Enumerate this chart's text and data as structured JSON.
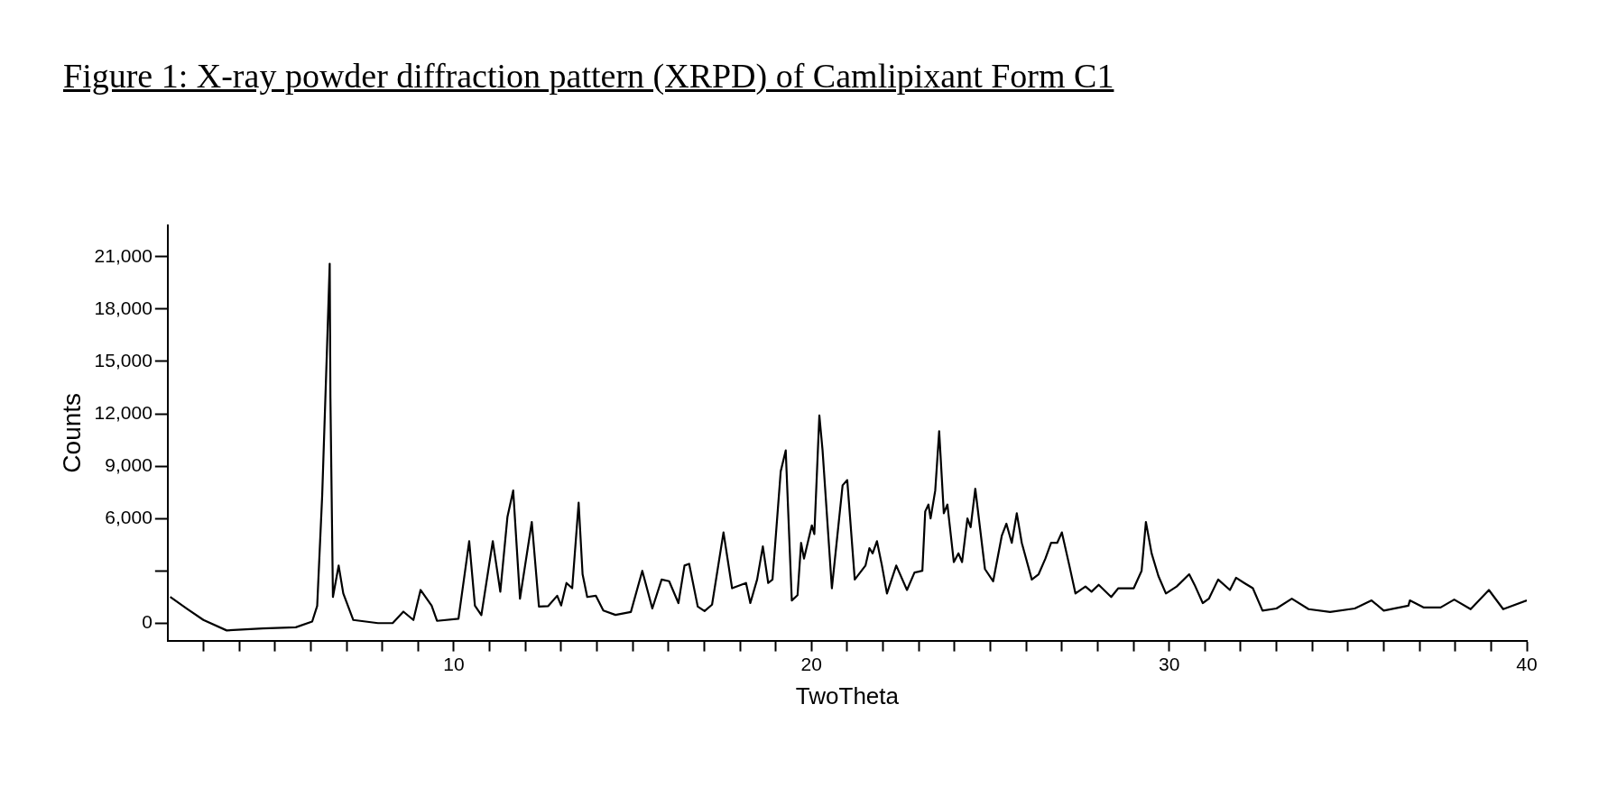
{
  "chart_data": {
    "type": "line",
    "title": "Figure 1: X-ray powder diffraction pattern (XRPD) of Camlipixant Form C1",
    "xlabel": "TwoTheta",
    "ylabel": "Counts",
    "xlim": [
      2,
      40
    ],
    "ylim": [
      -1000,
      22800
    ],
    "xticks": [
      {
        "value": 3,
        "label": null
      },
      {
        "value": 4,
        "label": null
      },
      {
        "value": 5,
        "label": null
      },
      {
        "value": 6,
        "label": null
      },
      {
        "value": 7,
        "label": null
      },
      {
        "value": 8,
        "label": null
      },
      {
        "value": 9,
        "label": null
      },
      10,
      {
        "value": 11,
        "label": null
      },
      {
        "value": 12,
        "label": null
      },
      {
        "value": 13,
        "label": null
      },
      {
        "value": 14,
        "label": null
      },
      {
        "value": 15,
        "label": null
      },
      {
        "value": 16,
        "label": null
      },
      {
        "value": 17,
        "label": null
      },
      {
        "value": 18,
        "label": null
      },
      {
        "value": 19,
        "label": null
      },
      20,
      {
        "value": 21,
        "label": null
      },
      {
        "value": 22,
        "label": null
      },
      {
        "value": 23,
        "label": null
      },
      {
        "value": 24,
        "label": null
      },
      {
        "value": 25,
        "label": null
      },
      {
        "value": 26,
        "label": null
      },
      {
        "value": 27,
        "label": null
      },
      {
        "value": 28,
        "label": null
      },
      {
        "value": 29,
        "label": null
      },
      30,
      {
        "value": 31,
        "label": null
      },
      {
        "value": 32,
        "label": null
      },
      {
        "value": 33,
        "label": null
      },
      {
        "value": 34,
        "label": null
      },
      {
        "value": 35,
        "label": null
      },
      {
        "value": 36,
        "label": null
      },
      {
        "value": 37,
        "label": null
      },
      {
        "value": 38,
        "label": null
      },
      {
        "value": 39,
        "label": null
      },
      40
    ],
    "yticks": [
      0,
      {
        "value": 3000,
        "label": null
      },
      {
        "value": 6000,
        "label": "6,000"
      },
      {
        "value": 9000,
        "label": "9,000"
      },
      {
        "value": 12000,
        "label": "12,000"
      },
      {
        "value": 15000,
        "label": "15,000"
      },
      {
        "value": 18000,
        "label": "18,000"
      },
      {
        "value": 21000,
        "label": "21,000"
      }
    ],
    "series": [
      {
        "color": "#000000",
        "x": [
          2.07,
          2.55,
          3.0,
          3.65,
          4.66,
          5.58,
          6.04,
          6.18,
          6.32,
          6.45,
          6.53,
          6.55,
          6.62,
          6.78,
          6.91,
          7.19,
          7.88,
          8.29,
          8.59,
          8.87,
          9.07,
          9.38,
          9.53,
          10.13,
          10.43,
          10.59,
          10.77,
          11.09,
          11.3,
          11.5,
          11.66,
          11.85,
          12.18,
          12.38,
          12.64,
          12.89,
          13.0,
          13.15,
          13.31,
          13.49,
          13.6,
          13.73,
          13.97,
          14.18,
          14.52,
          14.95,
          15.27,
          15.55,
          15.81,
          16.02,
          16.28,
          16.45,
          16.58,
          16.82,
          17.01,
          17.22,
          17.54,
          17.78,
          18.17,
          18.29,
          18.48,
          18.64,
          18.79,
          18.91,
          19.14,
          19.28,
          19.45,
          19.61,
          19.71,
          19.79,
          20.01,
          20.08,
          20.22,
          20.31,
          20.57,
          20.87,
          21.0,
          21.21,
          21.51,
          21.62,
          21.71,
          21.83,
          21.97,
          22.11,
          22.37,
          22.67,
          22.88,
          23.1,
          23.18,
          23.27,
          23.33,
          23.46,
          23.57,
          23.7,
          23.8,
          23.98,
          24.11,
          24.21,
          24.36,
          24.45,
          24.58,
          24.85,
          25.08,
          25.32,
          25.45,
          25.6,
          25.74,
          25.88,
          26.16,
          26.35,
          26.54,
          26.7,
          26.87,
          27.0,
          27.21,
          27.38,
          27.66,
          27.83,
          28.03,
          28.38,
          28.58,
          29.01,
          29.23,
          29.35,
          29.51,
          29.7,
          29.91,
          30.21,
          30.56,
          30.71,
          30.94,
          31.11,
          31.37,
          31.7,
          31.87,
          32.1,
          32.34,
          32.61,
          33.0,
          33.43,
          33.9,
          34.5,
          35.19,
          35.66,
          36.0,
          36.69,
          36.73,
          37.11,
          37.59,
          37.97,
          38.43,
          38.94,
          39.34,
          40.0
        ],
        "values": [
          1500,
          810,
          180,
          -420,
          -300,
          -240,
          90,
          990,
          7330,
          15470,
          20600,
          12900,
          1500,
          3300,
          1700,
          180,
          0,
          0,
          660,
          180,
          1900,
          1000,
          130,
          250,
          4700,
          1000,
          460,
          4700,
          1800,
          6100,
          7600,
          1400,
          5800,
          950,
          980,
          1570,
          1010,
          2300,
          2000,
          6900,
          2800,
          1500,
          1570,
          720,
          470,
          640,
          3000,
          840,
          2500,
          2400,
          1150,
          3300,
          3400,
          950,
          690,
          1060,
          5200,
          2000,
          2300,
          1150,
          2500,
          4400,
          2300,
          2500,
          8700,
          9900,
          1300,
          1600,
          4600,
          3700,
          5600,
          5100,
          11900,
          9900,
          2000,
          7900,
          8200,
          2500,
          3300,
          4300,
          4000,
          4700,
          3300,
          1700,
          3300,
          1900,
          2900,
          3000,
          6400,
          6800,
          6000,
          7600,
          11000,
          6300,
          6800,
          3500,
          4000,
          3500,
          6000,
          5500,
          7700,
          3100,
          2400,
          5000,
          5700,
          4600,
          6300,
          4600,
          2500,
          2800,
          3700,
          4600,
          4600,
          5200,
          3300,
          1700,
          2100,
          1800,
          2200,
          1500,
          2000,
          2000,
          3000,
          5800,
          4000,
          2700,
          1700,
          2100,
          2800,
          2200,
          1150,
          1400,
          2500,
          1900,
          2600,
          2300,
          2000,
          720,
          840,
          1400,
          800,
          640,
          840,
          1300,
          720,
          1000,
          1300,
          900,
          900,
          1350,
          800,
          1900,
          800,
          1300
        ]
      }
    ]
  }
}
